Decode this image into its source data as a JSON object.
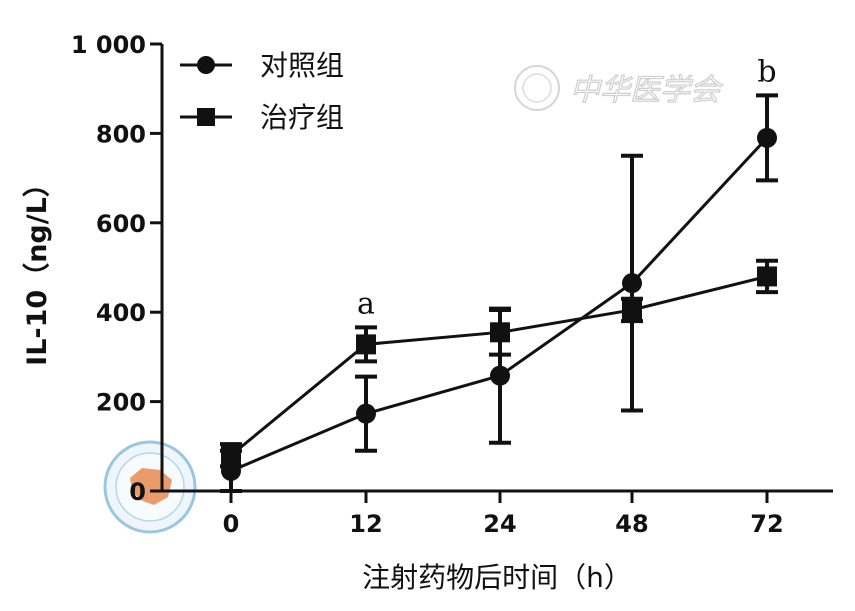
{
  "chart_data": {
    "type": "line",
    "categories": [
      "0",
      "12",
      "24",
      "48",
      "72"
    ],
    "xlabel": "注射药物后时间（h）",
    "ylabel": "IL-10（ng/L）",
    "ylim": [
      0,
      1000
    ],
    "yticks": [
      "0",
      "200",
      "400",
      "600",
      "800",
      "1 000"
    ],
    "grid": false,
    "legend_position": "top-left",
    "series": [
      {
        "name": "对照组",
        "marker": "circle",
        "values": [
          45,
          173,
          258,
          465,
          790
        ],
        "error": [
          45,
          83,
          150,
          285,
          95
        ]
      },
      {
        "name": "治疗组",
        "marker": "square",
        "values": [
          80,
          328,
          355,
          405,
          480
        ],
        "error": [
          25,
          38,
          50,
          25,
          35
        ]
      }
    ],
    "annotations": [
      {
        "text": "a",
        "category": "12"
      },
      {
        "text": "b",
        "category": "72"
      }
    ]
  },
  "watermark": {
    "text": "中华医学会"
  }
}
